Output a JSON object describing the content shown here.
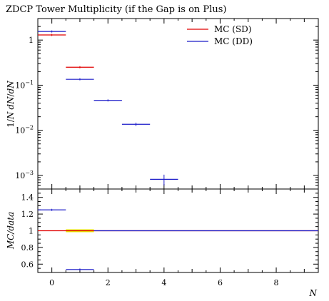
{
  "chart_data": {
    "type": "scatter",
    "title": "ZDCP Tower Multiplicity (if the Gap is on Plus)",
    "main": {
      "ylabel": "1/N dN/dN",
      "yscale": "log",
      "ylim": [
        0.0005,
        3.0
      ],
      "yticks": [
        {
          "value": 1,
          "label": "1"
        },
        {
          "value": 0.1,
          "label": "10^-1"
        },
        {
          "value": 0.01,
          "label": "10^-2"
        },
        {
          "value": 0.001,
          "label": "10^-3"
        }
      ],
      "series": [
        {
          "name": "MC (SD)",
          "color": "#e00000",
          "points": [
            {
              "xlo": -0.5,
              "xhi": 0.5,
              "y": 1.3
            },
            {
              "xlo": 0.5,
              "xhi": 1.5,
              "y": 0.25
            }
          ]
        },
        {
          "name": "MC (DD)",
          "color": "#1a1ac8",
          "points": [
            {
              "xlo": -0.5,
              "xhi": 0.5,
              "y": 1.55
            },
            {
              "xlo": 0.5,
              "xhi": 1.5,
              "y": 0.135
            },
            {
              "xlo": 1.5,
              "xhi": 2.5,
              "y": 0.046
            },
            {
              "xlo": 2.5,
              "xhi": 3.5,
              "y": 0.0136,
              "err": 0.0012
            },
            {
              "xlo": 3.5,
              "xhi": 4.5,
              "y": 0.00082,
              "err": 0.00022
            }
          ]
        }
      ]
    },
    "ratio": {
      "ylabel": "MC/data",
      "ylim": [
        0.5,
        1.5
      ],
      "yticks": [
        {
          "value": 0.6,
          "label": "0.6"
        },
        {
          "value": 0.8,
          "label": "0.8"
        },
        {
          "value": 1.0,
          "label": "1"
        },
        {
          "value": 1.2,
          "label": "1.2"
        },
        {
          "value": 1.4,
          "label": "1.4"
        }
      ],
      "band": {
        "color": "#e8e800",
        "xlo": 0.5,
        "xhi": 1.5,
        "y": 1.0
      },
      "series": [
        {
          "name": "MC (SD)",
          "color": "#e00000",
          "points": [
            {
              "xlo": -0.5,
              "xhi": 9.5,
              "y": 1.0
            }
          ]
        },
        {
          "name": "MC (DD)",
          "color": "#1a1ac8",
          "points": [
            {
              "xlo": -0.5,
              "xhi": 0.5,
              "y": 1.25
            },
            {
              "xlo": 0.5,
              "xhi": 1.5,
              "y": 0.535
            },
            {
              "xlo": 1.5,
              "xhi": 9.5,
              "y": 1.0
            }
          ]
        }
      ]
    },
    "xlabel": "N",
    "xlim": [
      -0.5,
      9.5
    ],
    "xticks": [
      {
        "value": 0,
        "label": "0"
      },
      {
        "value": 2,
        "label": "2"
      },
      {
        "value": 4,
        "label": "4"
      },
      {
        "value": 6,
        "label": "6"
      },
      {
        "value": 8,
        "label": "8"
      }
    ],
    "legend": "top-right"
  }
}
